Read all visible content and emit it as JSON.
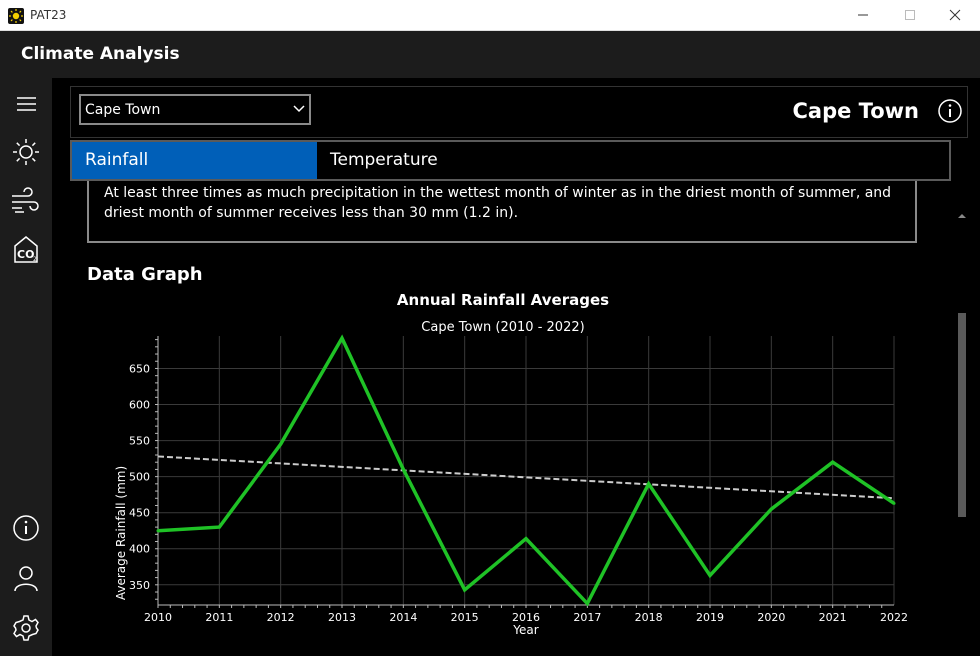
{
  "window": {
    "app_name": "PAT23"
  },
  "header": {
    "title": "Climate Analysis"
  },
  "rail": {
    "items": [
      {
        "icon": "menu-icon"
      },
      {
        "icon": "sun-icon"
      },
      {
        "icon": "wind-icon"
      },
      {
        "icon": "co2-icon"
      },
      {
        "icon": "info-icon"
      },
      {
        "icon": "user-icon"
      },
      {
        "icon": "settings-icon"
      }
    ]
  },
  "toolbar": {
    "city_select": {
      "value": "Cape Town"
    },
    "city_heading": "Cape Town"
  },
  "tabs": [
    {
      "label": "Rainfall",
      "selected": true
    },
    {
      "label": "Temperature",
      "selected": false
    }
  ],
  "description": {
    "line1": "At least three times as much precipitation in the wettest month of winter as in the driest month of summer, and",
    "line2": "driest month of summer receives less than 30 mm (1.2 in)."
  },
  "section": {
    "title": "Data Graph"
  },
  "colors": {
    "accent": "#005fb8",
    "series": "#1fc226",
    "trend": "#cccccc"
  },
  "chart_data": {
    "type": "line",
    "title": "Annual Rainfall Averages",
    "subtitle": "Cape Town (2010 - 2022)",
    "xlabel": "Year",
    "ylabel": "Average Rainfall (mm)",
    "x": [
      2010,
      2011,
      2012,
      2013,
      2014,
      2015,
      2016,
      2017,
      2018,
      2019,
      2020,
      2021,
      2022
    ],
    "xticks": [
      "2010",
      "2011",
      "2012",
      "2013",
      "2014",
      "2015",
      "2016",
      "2017",
      "2018",
      "2019",
      "2020",
      "2021",
      "2022"
    ],
    "yticks": [
      "350",
      "400",
      "450",
      "500",
      "550",
      "600",
      "650"
    ],
    "ylim": [
      322,
      695
    ],
    "grid": true,
    "series": [
      {
        "values": [
          425,
          430,
          545,
          692,
          510,
          343,
          414,
          324,
          490,
          363,
          455,
          520,
          463
        ]
      }
    ],
    "trendline": {
      "start": [
        2010,
        528
      ],
      "end": [
        2022,
        470
      ]
    }
  }
}
